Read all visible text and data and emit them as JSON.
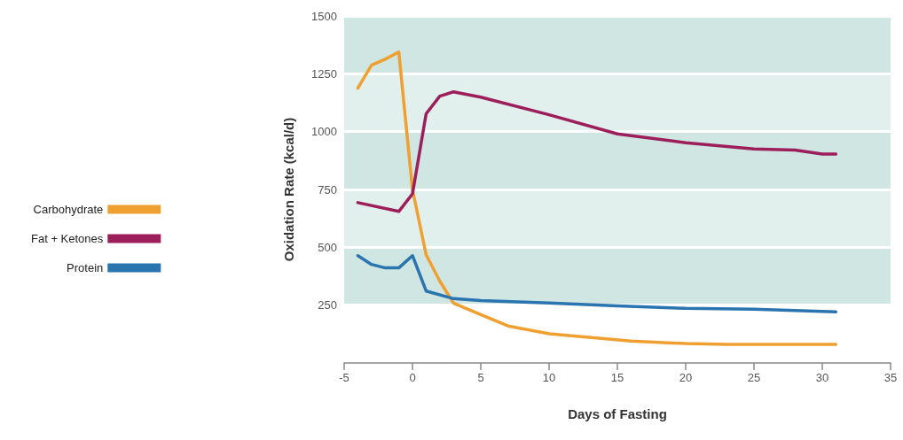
{
  "chart_data": {
    "type": "line",
    "xlabel": "Days of Fasting",
    "ylabel": "Oxidation Rate (kcal/d)",
    "xlim": [
      -5,
      35
    ],
    "xticks": [
      -5,
      0,
      5,
      10,
      15,
      20,
      25,
      30,
      35
    ],
    "ylim": [
      0,
      1500
    ],
    "yticks": [
      250,
      500,
      750,
      1000,
      1250,
      1500
    ],
    "grid": "y",
    "legend": "left",
    "marker": "none",
    "line_style": "solid",
    "series": [
      {
        "name": "Carbohydrate",
        "color": "#f0a030",
        "x": [
          -4,
          -3,
          -2,
          -1,
          0,
          1,
          2,
          3,
          5,
          7,
          10,
          16,
          20,
          23,
          31
        ],
        "values": [
          1188,
          1287,
          1313,
          1344,
          750,
          468,
          354,
          259,
          209,
          160,
          126,
          95,
          84,
          80,
          80
        ]
      },
      {
        "name": "Fat + Ketones",
        "color": "#9c1f5c",
        "x": [
          -4,
          -1,
          0,
          1,
          2,
          3,
          5,
          10,
          15,
          20,
          25,
          28,
          30,
          31
        ],
        "values": [
          693,
          655,
          731,
          1077,
          1153,
          1172,
          1149,
          1073,
          990,
          952,
          925,
          920,
          903,
          903
        ]
      },
      {
        "name": "Protein",
        "color": "#2a74b0",
        "x": [
          -4,
          -3,
          -2,
          -1,
          0,
          1,
          3,
          5,
          10,
          15,
          20,
          25,
          31
        ],
        "values": [
          464,
          426,
          411,
          411,
          464,
          311,
          278,
          270,
          259,
          247,
          236,
          232,
          221
        ]
      }
    ]
  }
}
